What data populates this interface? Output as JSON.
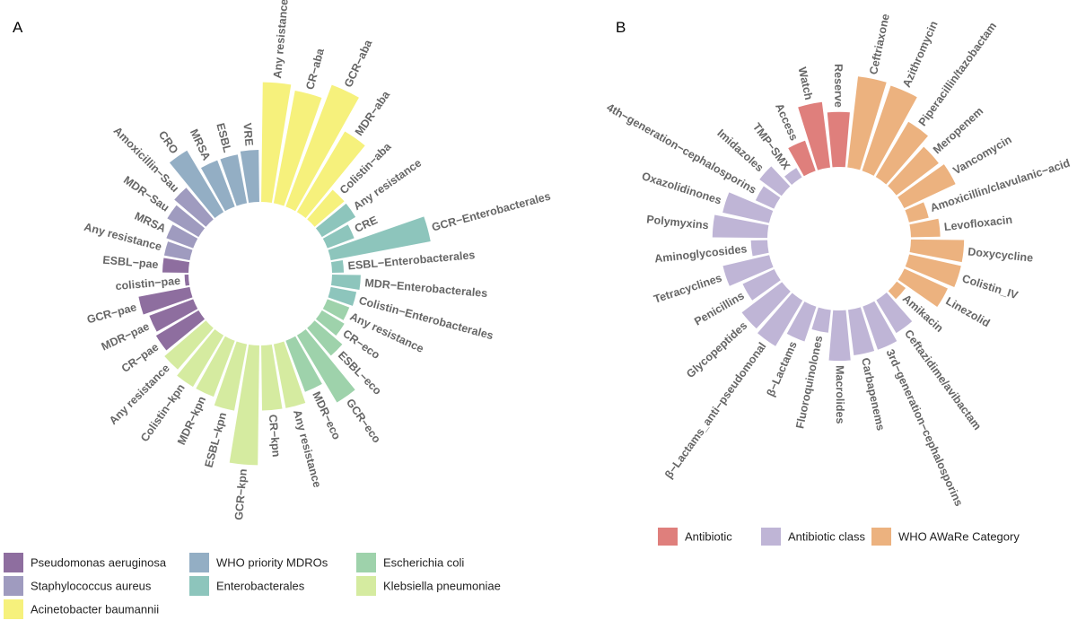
{
  "colors": {
    "pae": "#8e6e9f",
    "sau": "#9f9bbf",
    "aba": "#f6f17c",
    "mdro": "#93aec4",
    "ent": "#8dc5bc",
    "eco": "#9ed2ab",
    "kpn": "#d5eba0",
    "antibiotic": "#df7f7c",
    "abclass": "#bfb5d6",
    "aware": "#ecb27f"
  },
  "chart_data": [
    {
      "type": "circular-bar",
      "panel": "A",
      "value_unit": "relative bar length",
      "bars": [
        {
          "label": "Any resistance",
          "group": "aba",
          "value": 92
        },
        {
          "label": "CR−aba",
          "group": "aba",
          "value": 88
        },
        {
          "label": "GCR−aba",
          "group": "aba",
          "value": 100
        },
        {
          "label": "MDR−aba",
          "group": "aba",
          "value": 72
        },
        {
          "label": "Colistin−aba",
          "group": "aba",
          "value": 30
        },
        {
          "label": "Any resistance",
          "group": "ent",
          "value": 30
        },
        {
          "label": "CRE",
          "group": "ent",
          "value": 22
        },
        {
          "label": "GCR−Enterobacterales",
          "group": "ent",
          "value": 78
        },
        {
          "label": "ESBL−Enterobacterales",
          "group": "ent",
          "value": 9
        },
        {
          "label": "MDR−Enterobacterales",
          "group": "ent",
          "value": 22
        },
        {
          "label": "Colistin−Enterobacterales",
          "group": "ent",
          "value": 20
        },
        {
          "label": "Any resistance",
          "group": "eco",
          "value": 18
        },
        {
          "label": "CR−eco",
          "group": "eco",
          "value": 20
        },
        {
          "label": "ESBL−eco",
          "group": "eco",
          "value": 28
        },
        {
          "label": "GCR−eco",
          "group": "eco",
          "value": 60
        },
        {
          "label": "MDR−eco",
          "group": "eco",
          "value": 42
        },
        {
          "label": "Any resistance",
          "group": "kpn",
          "value": 50
        },
        {
          "label": "CR−kpn",
          "group": "kpn",
          "value": 50
        },
        {
          "label": "GCR−kpn",
          "group": "kpn",
          "value": 92
        },
        {
          "label": "ESBL−kpn",
          "group": "kpn",
          "value": 52
        },
        {
          "label": "MDR−kpn",
          "group": "kpn",
          "value": 46
        },
        {
          "label": "Colistin−kpn",
          "group": "kpn",
          "value": 46
        },
        {
          "label": "Any resistance",
          "group": "kpn",
          "value": 42
        },
        {
          "label": "CR−pae",
          "group": "pae",
          "value": 38
        },
        {
          "label": "MDR−pae",
          "group": "pae",
          "value": 36
        },
        {
          "label": "GCR−pae",
          "group": "pae",
          "value": 40
        },
        {
          "label": "colistin−pae",
          "group": "pae",
          "value": 3
        },
        {
          "label": "ESBL−pae",
          "group": "pae",
          "value": 20
        },
        {
          "label": "Any resistance",
          "group": "sau",
          "value": 20
        },
        {
          "label": "MRSA",
          "group": "sau",
          "value": 22
        },
        {
          "label": "MDR−Sau",
          "group": "sau",
          "value": 28
        },
        {
          "label": "Amoxicillin−Sau",
          "group": "sau",
          "value": 32
        },
        {
          "label": "CRO",
          "group": "mdro",
          "value": 55
        },
        {
          "label": "MRSA",
          "group": "mdro",
          "value": 38
        },
        {
          "label": "ESBL",
          "group": "mdro",
          "value": 38
        },
        {
          "label": "VRE",
          "group": "mdro",
          "value": 40
        }
      ],
      "legend": [
        {
          "group": "pae",
          "label": "Pseudomonas aeruginosa"
        },
        {
          "group": "mdro",
          "label": "WHO priority MDROs"
        },
        {
          "group": "eco",
          "label": "Escherichia coli"
        },
        {
          "group": "sau",
          "label": "Staphylococcus aureus"
        },
        {
          "group": "ent",
          "label": "Enterobacterales"
        },
        {
          "group": "kpn",
          "label": "Klebsiella pneumoniae"
        },
        {
          "group": "aba",
          "label": "Acinetobacter baumannii"
        }
      ]
    },
    {
      "type": "circular-bar",
      "panel": "B",
      "value_unit": "relative bar length",
      "bars": [
        {
          "label": "Ceftriaxone",
          "group": "aware",
          "value": 100
        },
        {
          "label": "Azithromycin",
          "group": "aware",
          "value": 98
        },
        {
          "label": "Piperacillin/tazobactam",
          "group": "aware",
          "value": 70
        },
        {
          "label": "Meropenem",
          "group": "aware",
          "value": 58
        },
        {
          "label": "Vancomycin",
          "group": "aware",
          "value": 62
        },
        {
          "label": "Amoxicillin/clavulanic−acid",
          "group": "aware",
          "value": 22
        },
        {
          "label": "Levofloxacin",
          "group": "aware",
          "value": 32
        },
        {
          "label": "Doxycycline",
          "group": "aware",
          "value": 58
        },
        {
          "label": "Colistin_IV",
          "group": "aware",
          "value": 58
        },
        {
          "label": "Linezolid",
          "group": "aware",
          "value": 52
        },
        {
          "label": "Amikacin",
          "group": "aware",
          "value": 12
        },
        {
          "label": "Ceftazidime/avibactam",
          "group": "abclass",
          "value": 42
        },
        {
          "label": "3rd−generation−cephalosporins",
          "group": "abclass",
          "value": 50
        },
        {
          "label": "Carbapenems",
          "group": "abclass",
          "value": 50
        },
        {
          "label": "Macrolides",
          "group": "abclass",
          "value": 55
        },
        {
          "label": "Fluoroquinolones",
          "group": "abclass",
          "value": 25
        },
        {
          "label": "β−Lactams",
          "group": "abclass",
          "value": 40
        },
        {
          "label": "β−Lactams_anti−pseudomonal",
          "group": "abclass",
          "value": 58
        },
        {
          "label": "Glycopeptides",
          "group": "abclass",
          "value": 55
        },
        {
          "label": "Penicillins",
          "group": "abclass",
          "value": 38
        },
        {
          "label": "Tetracyclines",
          "group": "abclass",
          "value": 52
        },
        {
          "label": "Aminoglycosides",
          "group": "abclass",
          "value": 18
        },
        {
          "label": "Polymyxins",
          "group": "abclass",
          "value": 60
        },
        {
          "label": "Oxazolidinones",
          "group": "abclass",
          "value": 52
        },
        {
          "label": "4th−generation−cephalosporins",
          "group": "abclass",
          "value": 22
        },
        {
          "label": "Imidazoles",
          "group": "abclass",
          "value": 30
        },
        {
          "label": "TMP−SMX",
          "group": "abclass",
          "value": 12
        },
        {
          "label": "Access",
          "group": "antibiotic",
          "value": 35
        },
        {
          "label": "Watch",
          "group": "antibiotic",
          "value": 72
        },
        {
          "label": "Reserve",
          "group": "antibiotic",
          "value": 60
        }
      ],
      "legend": [
        {
          "group": "antibiotic",
          "label": "Antibiotic"
        },
        {
          "group": "abclass",
          "label": "Antibiotic class"
        },
        {
          "group": "aware",
          "label": "WHO AWaRe Category"
        }
      ]
    }
  ]
}
